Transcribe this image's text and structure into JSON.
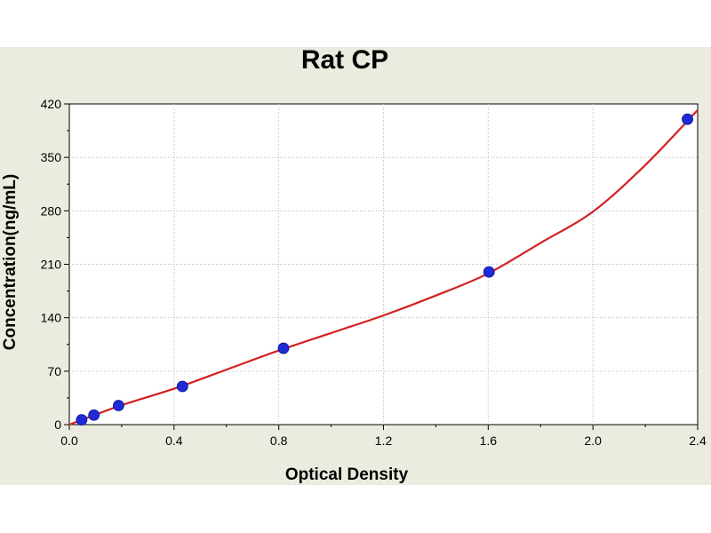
{
  "chart_data": {
    "type": "scatter",
    "title": "Rat CP",
    "xlabel": "Optical Density",
    "ylabel": "Concentration(ng/mL)",
    "xlim": [
      0,
      2.4
    ],
    "ylim": [
      0,
      420
    ],
    "xticks": [
      "0.0",
      "0.4",
      "0.8",
      "1.2",
      "1.6",
      "2.0",
      "2.4"
    ],
    "yticks": [
      "0",
      "70",
      "140",
      "210",
      "280",
      "350",
      "420"
    ],
    "grid": true,
    "points": {
      "x": [
        0.047,
        0.094,
        0.188,
        0.432,
        0.818,
        1.603,
        2.361
      ],
      "y": [
        6.25,
        12.5,
        25,
        50,
        100,
        200,
        400
      ]
    },
    "fit_curve": {
      "x": [
        0.0,
        0.2,
        0.4,
        0.6,
        0.8,
        1.0,
        1.2,
        1.4,
        1.6,
        1.8,
        2.0,
        2.2,
        2.4
      ],
      "y": [
        0,
        25.5,
        47,
        72,
        97,
        120,
        143,
        169,
        198,
        238,
        279,
        340,
        412
      ]
    },
    "colors": {
      "marker": "#1e2ad6",
      "curve": "#d42020",
      "background": "#ecebdf",
      "plot_area": "#ffffff",
      "grid": "#b8b8b8"
    }
  }
}
